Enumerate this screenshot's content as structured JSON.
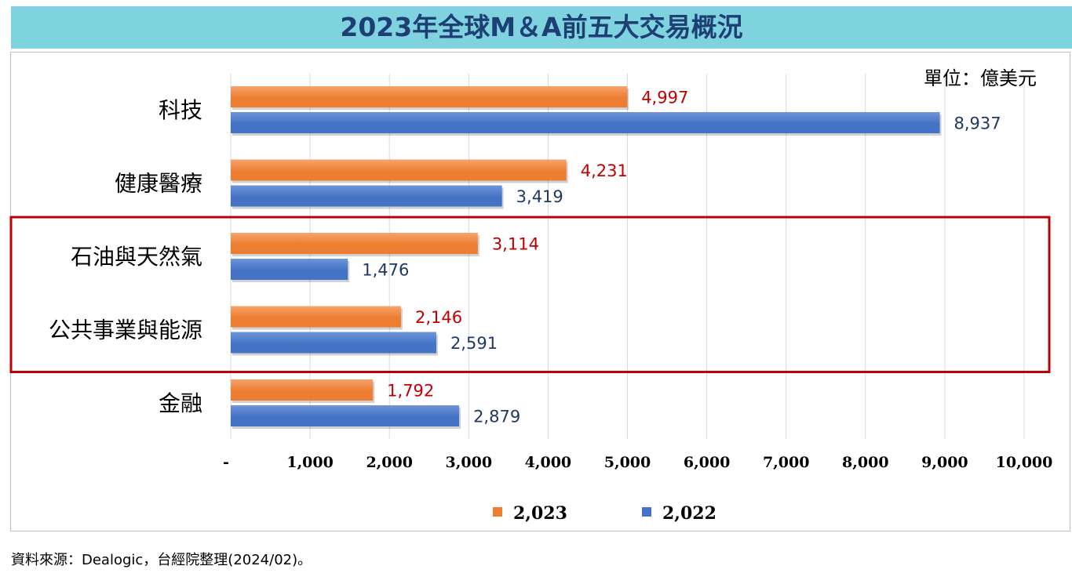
{
  "title": "2023年全球M＆A前五大交易概況",
  "unit_label": "單位：億美元",
  "source": "資料來源：Dealogic，台經院整理(2024/02)。",
  "colors": {
    "title_bg": "#7fd3df",
    "title_text": "#1d3f73",
    "series_2023": "#ed7d31",
    "series_2022": "#4472c4",
    "label_2023": "#c00000",
    "label_2022": "#1f3864",
    "highlight_box": "#c00000",
    "grid": "#d9d9d9"
  },
  "chart_data": {
    "type": "bar",
    "orientation": "horizontal",
    "categories": [
      "科技",
      "健康醫療",
      "石油與天然氣",
      "公共事業與能源",
      "金融"
    ],
    "series": [
      {
        "name": "2,023",
        "values": [
          4997,
          4231,
          3114,
          2146,
          1792
        ],
        "labels": [
          "4,997",
          "4,231",
          "3,114",
          "2,146",
          "1,792"
        ]
      },
      {
        "name": "2,022",
        "values": [
          8937,
          3419,
          1476,
          2591,
          2879
        ],
        "labels": [
          "8,937",
          "3,419",
          "1,476",
          "2,591",
          "2,879"
        ]
      }
    ],
    "xlim": [
      0,
      10000
    ],
    "x_ticks": [
      0,
      1000,
      2000,
      3000,
      4000,
      5000,
      6000,
      7000,
      8000,
      9000,
      10000
    ],
    "x_tick_labels": [
      "-",
      "1,000",
      "2,000",
      "3,000",
      "4,000",
      "5,000",
      "6,000",
      "7,000",
      "8,000",
      "9,000",
      "10,000"
    ],
    "grid": true,
    "legend_position": "bottom",
    "highlighted_categories": [
      "石油與天然氣",
      "公共事業與能源"
    ]
  }
}
